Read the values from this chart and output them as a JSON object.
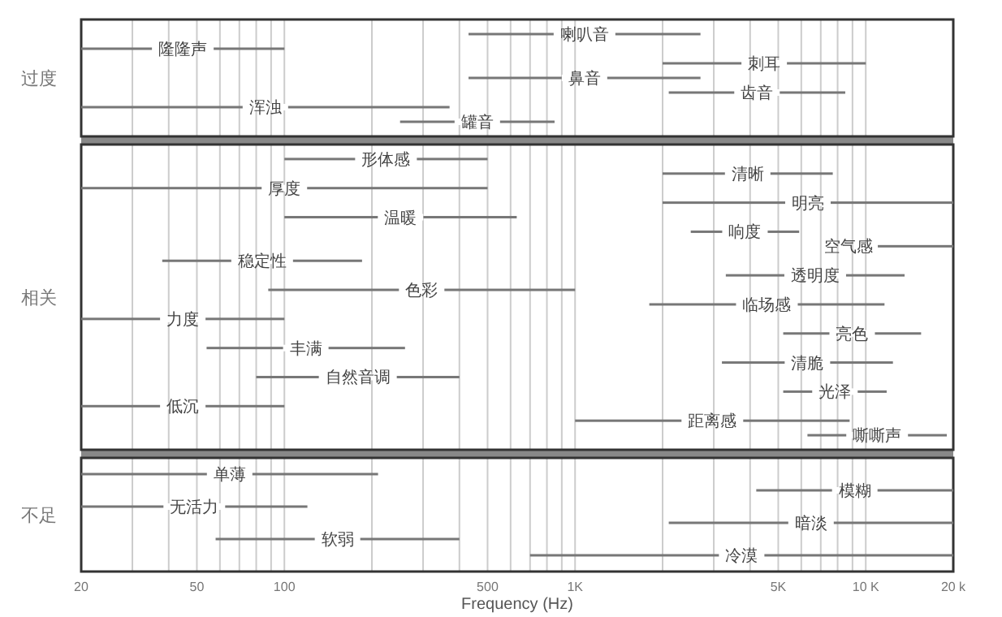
{
  "chart_data": [
    {
      "type": "bar",
      "orientation": "horizontal",
      "log": "x",
      "ylabel": "过度",
      "grid": "x",
      "tick_labels": false,
      "color": "#777777",
      "categories": [
        "喇叭音",
        "隆隆声",
        "刺耳",
        "鼻音",
        "齿音",
        "浑浊",
        "罐音"
      ],
      "base": [
        430,
        20,
        2000,
        430,
        2100,
        20,
        250
      ],
      "values": [
        2270,
        80,
        8000,
        2270,
        6400,
        350,
        600
      ],
      "xlim": [
        20,
        20000
      ],
      "xticks": [
        20,
        30,
        40,
        50,
        60,
        70,
        80,
        90,
        100,
        200,
        300,
        400,
        500,
        600,
        700,
        800,
        900,
        1000,
        2000,
        3000,
        4000,
        5000,
        6000,
        7000,
        8000,
        9000,
        10000,
        20000
      ]
    },
    {
      "type": "bar",
      "orientation": "horizontal",
      "log": "x",
      "ylabel": "相关",
      "grid": "x",
      "tick_labels": false,
      "color": "#777777",
      "categories": [
        "形体感",
        "清晰",
        "厚度",
        "明亮",
        "温暖",
        "响度",
        "空气感",
        "稳定性",
        "透明度",
        "色彩",
        "临场感",
        "力度",
        "亮色",
        "丰满",
        "清脆",
        "自然音调",
        "光泽",
        "低沉",
        "距离感",
        "嘶嘶声"
      ],
      "base": [
        100,
        2000,
        20,
        2000,
        100,
        2500,
        11000,
        38,
        3300,
        88,
        1800,
        20,
        5200,
        54,
        3200,
        80,
        5200,
        20,
        1000,
        6300
      ],
      "values": [
        400,
        5700,
        480,
        18000,
        530,
        3400,
        9000,
        147,
        10300,
        912,
        9800,
        80,
        10300,
        206,
        9200,
        320,
        6600,
        80,
        7800,
        12700
      ],
      "xlim": [
        20,
        20000
      ],
      "xticks": [
        20,
        30,
        40,
        50,
        60,
        70,
        80,
        90,
        100,
        200,
        300,
        400,
        500,
        600,
        700,
        800,
        900,
        1000,
        2000,
        3000,
        4000,
        5000,
        6000,
        7000,
        8000,
        9000,
        10000,
        20000
      ]
    },
    {
      "type": "bar",
      "orientation": "horizontal",
      "log": "x",
      "ylabel": "不足",
      "xlabel": "Frequency (Hz)",
      "grid": "x",
      "tick_labels": "x",
      "color": "#777777",
      "categories": [
        "单薄",
        "模糊",
        "无活力",
        "暗淡",
        "软弱",
        "冷漠"
      ],
      "base": [
        20,
        4200,
        20,
        2100,
        58,
        700
      ],
      "values": [
        190,
        15800,
        100,
        17900,
        342,
        19300
      ],
      "xlim": [
        20,
        20000
      ],
      "xticks": [
        20,
        {
          "value": 30,
          "label": null
        },
        {
          "value": 40,
          "label": null
        },
        50,
        {
          "value": 60,
          "label": null
        },
        {
          "value": 70,
          "label": null
        },
        {
          "value": 80,
          "label": null
        },
        {
          "value": 90,
          "label": null
        },
        100,
        {
          "value": 200,
          "label": null
        },
        {
          "value": 300,
          "label": null
        },
        {
          "value": 400,
          "label": null
        },
        500,
        {
          "value": 600,
          "label": null
        },
        {
          "value": 700,
          "label": null
        },
        {
          "value": 800,
          "label": null
        },
        {
          "value": 900,
          "label": null
        },
        {
          "value": 1000,
          "label": "1K"
        },
        {
          "value": 2000,
          "label": null
        },
        {
          "value": 3000,
          "label": null
        },
        {
          "value": 4000,
          "label": null
        },
        {
          "value": 5000,
          "label": "5K"
        },
        {
          "value": 6000,
          "label": null
        },
        {
          "value": 7000,
          "label": null
        },
        {
          "value": 8000,
          "label": null
        },
        {
          "value": 9000,
          "label": null
        },
        {
          "value": 10000,
          "label": "10 K"
        },
        {
          "value": 20000,
          "label": "20 k"
        }
      ]
    }
  ]
}
